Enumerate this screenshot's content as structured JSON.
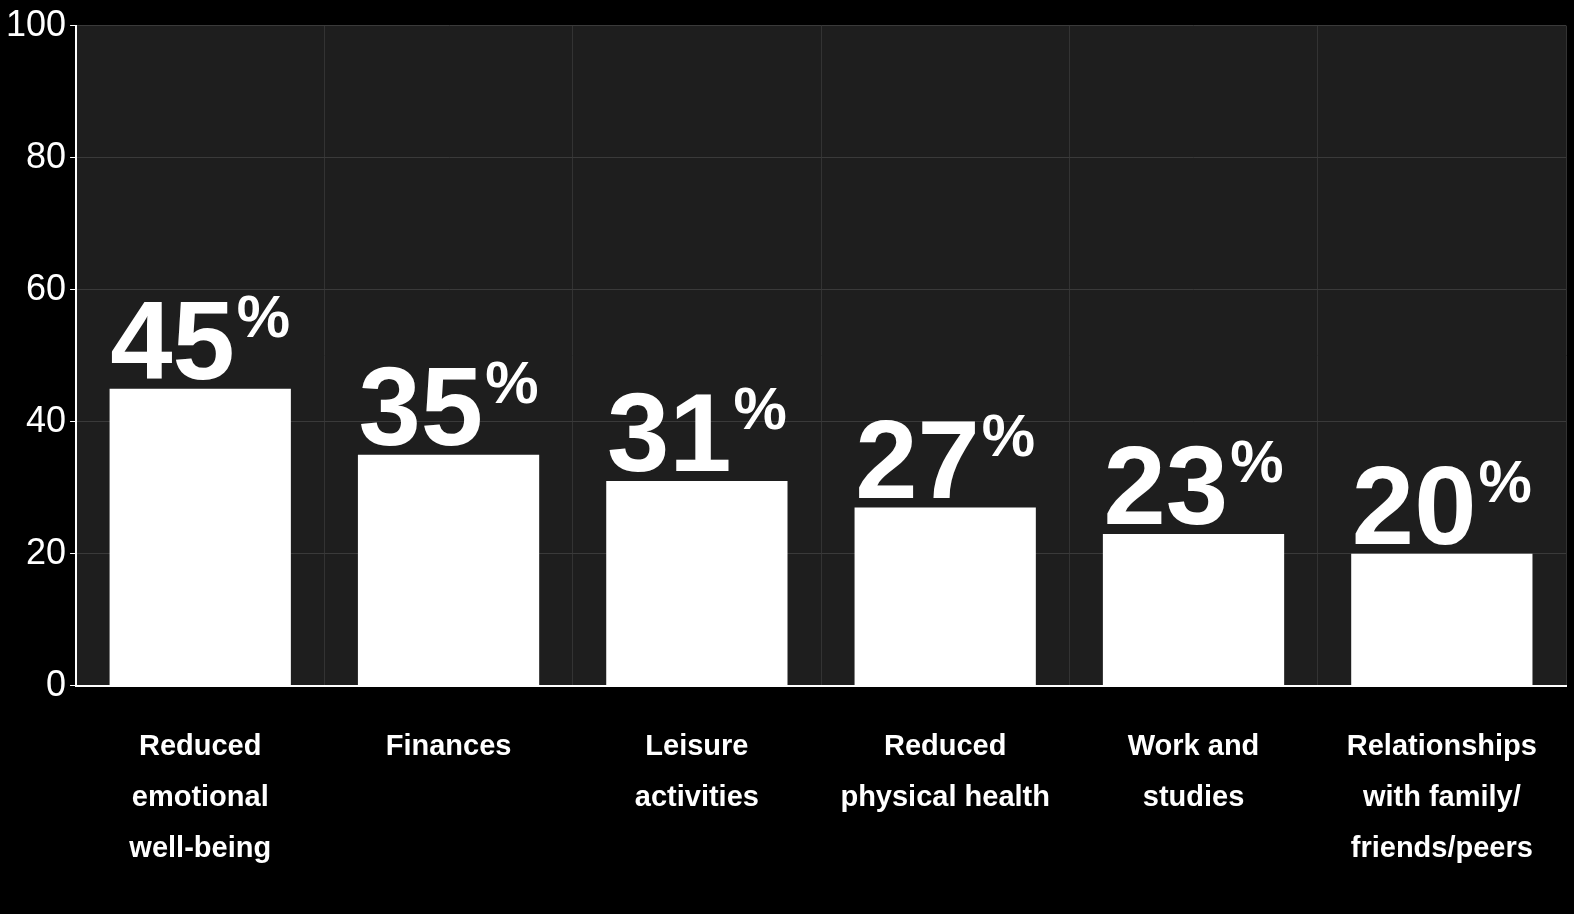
{
  "chart_data": {
    "type": "bar",
    "categories": [
      "Reduced emotional well-being",
      "Finances",
      "Leisure activities",
      "Reduced physical health",
      "Work and studies",
      "Relationships with family/friends/peers"
    ],
    "values": [
      45,
      35,
      31,
      27,
      23,
      20
    ],
    "value_labels": [
      "45%",
      "35%",
      "31%",
      "27%",
      "23%",
      "20%"
    ],
    "color": "#ffffff",
    "ylim": [
      0,
      100
    ],
    "yticks": [
      0,
      20,
      40,
      60,
      80,
      100
    ],
    "grid": true,
    "data_labels": true
  }
}
